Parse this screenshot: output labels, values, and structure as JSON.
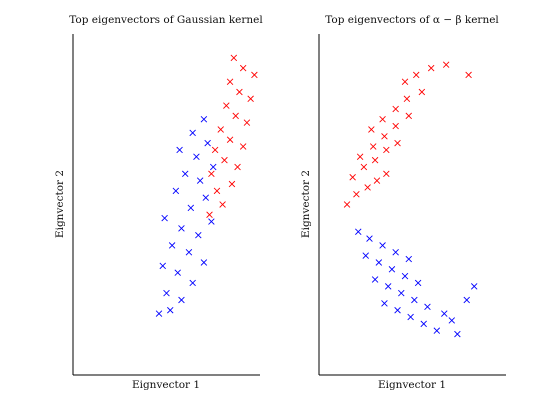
{
  "figure": {
    "background": "#ffffff",
    "cluster_colors": [
      "#0000ff",
      "#ff0000"
    ]
  },
  "chart_data": [
    {
      "type": "scatter",
      "title": "Top eigenvectors of Gaussian kernel",
      "xlabel": "Eignvector 1",
      "ylabel": "Eignvector 2",
      "marker": "x",
      "grid": false,
      "axis_ticks": false,
      "xlim": [
        0,
        1
      ],
      "ylim": [
        0,
        1
      ],
      "series": [
        {
          "color": "#0000ff",
          "values": [
            [
              0.46,
              0.18
            ],
            [
              0.52,
              0.19
            ],
            [
              0.58,
              0.22
            ],
            [
              0.5,
              0.24
            ],
            [
              0.64,
              0.27
            ],
            [
              0.56,
              0.3
            ],
            [
              0.48,
              0.32
            ],
            [
              0.7,
              0.33
            ],
            [
              0.62,
              0.36
            ],
            [
              0.53,
              0.38
            ],
            [
              0.67,
              0.41
            ],
            [
              0.58,
              0.43
            ],
            [
              0.74,
              0.45
            ],
            [
              0.49,
              0.46
            ],
            [
              0.63,
              0.49
            ],
            [
              0.71,
              0.52
            ],
            [
              0.55,
              0.54
            ],
            [
              0.68,
              0.57
            ],
            [
              0.6,
              0.59
            ],
            [
              0.75,
              0.61
            ],
            [
              0.66,
              0.64
            ],
            [
              0.57,
              0.66
            ],
            [
              0.72,
              0.68
            ],
            [
              0.64,
              0.71
            ],
            [
              0.7,
              0.75
            ]
          ]
        },
        {
          "color": "#ff0000",
          "values": [
            [
              0.73,
              0.47
            ],
            [
              0.8,
              0.5
            ],
            [
              0.77,
              0.54
            ],
            [
              0.85,
              0.56
            ],
            [
              0.74,
              0.59
            ],
            [
              0.88,
              0.61
            ],
            [
              0.81,
              0.63
            ],
            [
              0.76,
              0.66
            ],
            [
              0.91,
              0.67
            ],
            [
              0.84,
              0.69
            ],
            [
              0.79,
              0.72
            ],
            [
              0.93,
              0.74
            ],
            [
              0.87,
              0.76
            ],
            [
              0.82,
              0.79
            ],
            [
              0.95,
              0.81
            ],
            [
              0.89,
              0.83
            ],
            [
              0.84,
              0.86
            ],
            [
              0.97,
              0.88
            ],
            [
              0.91,
              0.9
            ],
            [
              0.86,
              0.93
            ]
          ]
        }
      ]
    },
    {
      "type": "scatter",
      "title": "Top eigenvectors of α − β kernel",
      "xlabel": "Eignvector 1",
      "ylabel": "Eignvector 2",
      "marker": "x",
      "grid": false,
      "axis_ticks": false,
      "xlim": [
        0,
        1
      ],
      "ylim": [
        0,
        1
      ],
      "series": [
        {
          "color": "#0000ff",
          "values": [
            [
              0.21,
              0.42
            ],
            [
              0.27,
              0.4
            ],
            [
              0.34,
              0.38
            ],
            [
              0.41,
              0.36
            ],
            [
              0.48,
              0.34
            ],
            [
              0.25,
              0.35
            ],
            [
              0.32,
              0.33
            ],
            [
              0.39,
              0.31
            ],
            [
              0.46,
              0.29
            ],
            [
              0.53,
              0.27
            ],
            [
              0.3,
              0.28
            ],
            [
              0.37,
              0.26
            ],
            [
              0.44,
              0.24
            ],
            [
              0.51,
              0.22
            ],
            [
              0.58,
              0.2
            ],
            [
              0.35,
              0.21
            ],
            [
              0.42,
              0.19
            ],
            [
              0.49,
              0.17
            ],
            [
              0.56,
              0.15
            ],
            [
              0.63,
              0.13
            ],
            [
              0.67,
              0.18
            ],
            [
              0.71,
              0.16
            ],
            [
              0.74,
              0.12
            ],
            [
              0.79,
              0.22
            ],
            [
              0.83,
              0.26
            ]
          ]
        },
        {
          "color": "#ff0000",
          "values": [
            [
              0.15,
              0.5
            ],
            [
              0.2,
              0.53
            ],
            [
              0.26,
              0.55
            ],
            [
              0.31,
              0.57
            ],
            [
              0.36,
              0.59
            ],
            [
              0.18,
              0.58
            ],
            [
              0.24,
              0.61
            ],
            [
              0.3,
              0.63
            ],
            [
              0.36,
              0.66
            ],
            [
              0.42,
              0.68
            ],
            [
              0.22,
              0.64
            ],
            [
              0.29,
              0.67
            ],
            [
              0.35,
              0.7
            ],
            [
              0.41,
              0.73
            ],
            [
              0.48,
              0.76
            ],
            [
              0.28,
              0.72
            ],
            [
              0.34,
              0.75
            ],
            [
              0.41,
              0.78
            ],
            [
              0.47,
              0.81
            ],
            [
              0.55,
              0.83
            ],
            [
              0.46,
              0.86
            ],
            [
              0.52,
              0.88
            ],
            [
              0.6,
              0.9
            ],
            [
              0.68,
              0.91
            ],
            [
              0.8,
              0.88
            ]
          ]
        }
      ]
    }
  ]
}
